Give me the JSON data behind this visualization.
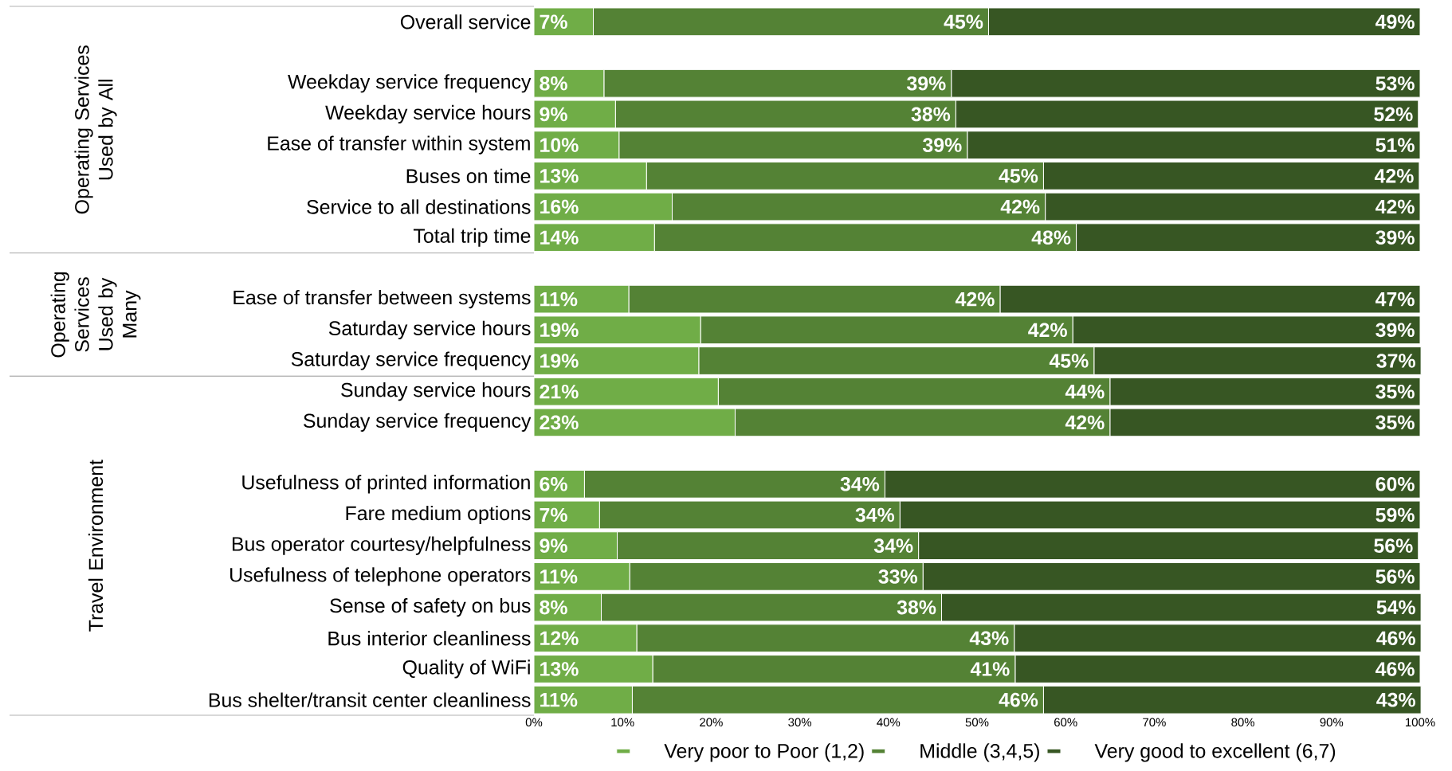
{
  "chart_data": {
    "type": "bar",
    "orientation": "horizontal",
    "stacked": true,
    "legend": "bottom",
    "categories": [
      "Overall service",
      null,
      "Weekday service frequency",
      "Weekday service hours",
      "Ease of transfer within system",
      "Buses on time",
      "Service to all destinations",
      "Total trip time",
      null,
      "Ease of transfer between systems",
      "Saturday service hours",
      "Saturday service frequency",
      "Sunday service hours",
      "Sunday service frequency",
      null,
      "Usefulness of printed information",
      "Fare medium options",
      "Bus operator courtesy/helpfulness",
      "Usefulness of telephone operators",
      "Sense of safety on bus",
      "Bus interior cleanliness",
      "Quality of WiFi",
      "Bus shelter/transit center cleanliness"
    ],
    "series": [
      {
        "name": "Very poor to Poor (1,2)",
        "color": "#70ad47",
        "values": [
          6.7,
          null,
          7.9,
          9.2,
          9.6,
          12.7,
          15.6,
          13.6,
          null,
          10.7,
          18.8,
          18.6,
          20.8,
          22.7,
          null,
          5.7,
          7.4,
          9.4,
          10.8,
          7.6,
          11.6,
          13.4,
          11.1
        ],
        "value_labels": [
          "7%",
          null,
          "8%",
          "9%",
          "10%",
          "13%",
          "16%",
          "14%",
          null,
          "11%",
          "19%",
          "19%",
          "21%",
          "23%",
          null,
          "6%",
          "7%",
          "9%",
          "11%",
          "8%",
          "12%",
          "13%",
          "11%"
        ]
      },
      {
        "name": "Middle (3,4,5)",
        "color": "#548235",
        "values": [
          44.6,
          null,
          39.2,
          38.4,
          39.3,
          44.8,
          42.1,
          47.6,
          null,
          41.9,
          42.0,
          44.6,
          44.2,
          42.3,
          null,
          33.9,
          33.9,
          34.0,
          33.1,
          38.4,
          42.6,
          40.9,
          46.4
        ],
        "value_labels": [
          "45%",
          null,
          "39%",
          "38%",
          "39%",
          "45%",
          "42%",
          "48%",
          null,
          "42%",
          "42%",
          "45%",
          "44%",
          "42%",
          null,
          "34%",
          "34%",
          "34%",
          "33%",
          "38%",
          "43%",
          "41%",
          "46%"
        ]
      },
      {
        "name": "Very good to excellent (6,7)",
        "color": "#375623",
        "values": [
          48.7,
          null,
          52.9,
          52.2,
          51.1,
          42.4,
          42.3,
          38.8,
          null,
          47.4,
          39.2,
          36.9,
          35.0,
          35.0,
          null,
          60.4,
          58.7,
          56.4,
          56.1,
          54.1,
          45.9,
          45.7,
          42.6
        ],
        "value_labels": [
          "49%",
          null,
          "53%",
          "52%",
          "51%",
          "42%",
          "42%",
          "39%",
          null,
          "47%",
          "39%",
          "37%",
          "35%",
          "35%",
          null,
          "60%",
          "59%",
          "56%",
          "56%",
          "54%",
          "46%",
          "46%",
          "43%"
        ]
      }
    ],
    "xlim": [
      0,
      100
    ],
    "xticks": [
      {
        "value": 0,
        "label": "0%"
      },
      {
        "value": 10,
        "label": "10%"
      },
      {
        "value": 20,
        "label": "20%"
      },
      {
        "value": 30,
        "label": "30%"
      },
      {
        "value": 40,
        "label": "40%"
      },
      {
        "value": 50,
        "label": "50%"
      },
      {
        "value": 60,
        "label": "60%"
      },
      {
        "value": 70,
        "label": "70%"
      },
      {
        "value": 80,
        "label": "80%"
      },
      {
        "value": 90,
        "label": "90%"
      },
      {
        "value": 100,
        "label": "100%"
      }
    ],
    "annotations": [
      "Operating Services Used by All",
      "Operating Services Used by Many",
      "Travel Environment"
    ]
  }
}
